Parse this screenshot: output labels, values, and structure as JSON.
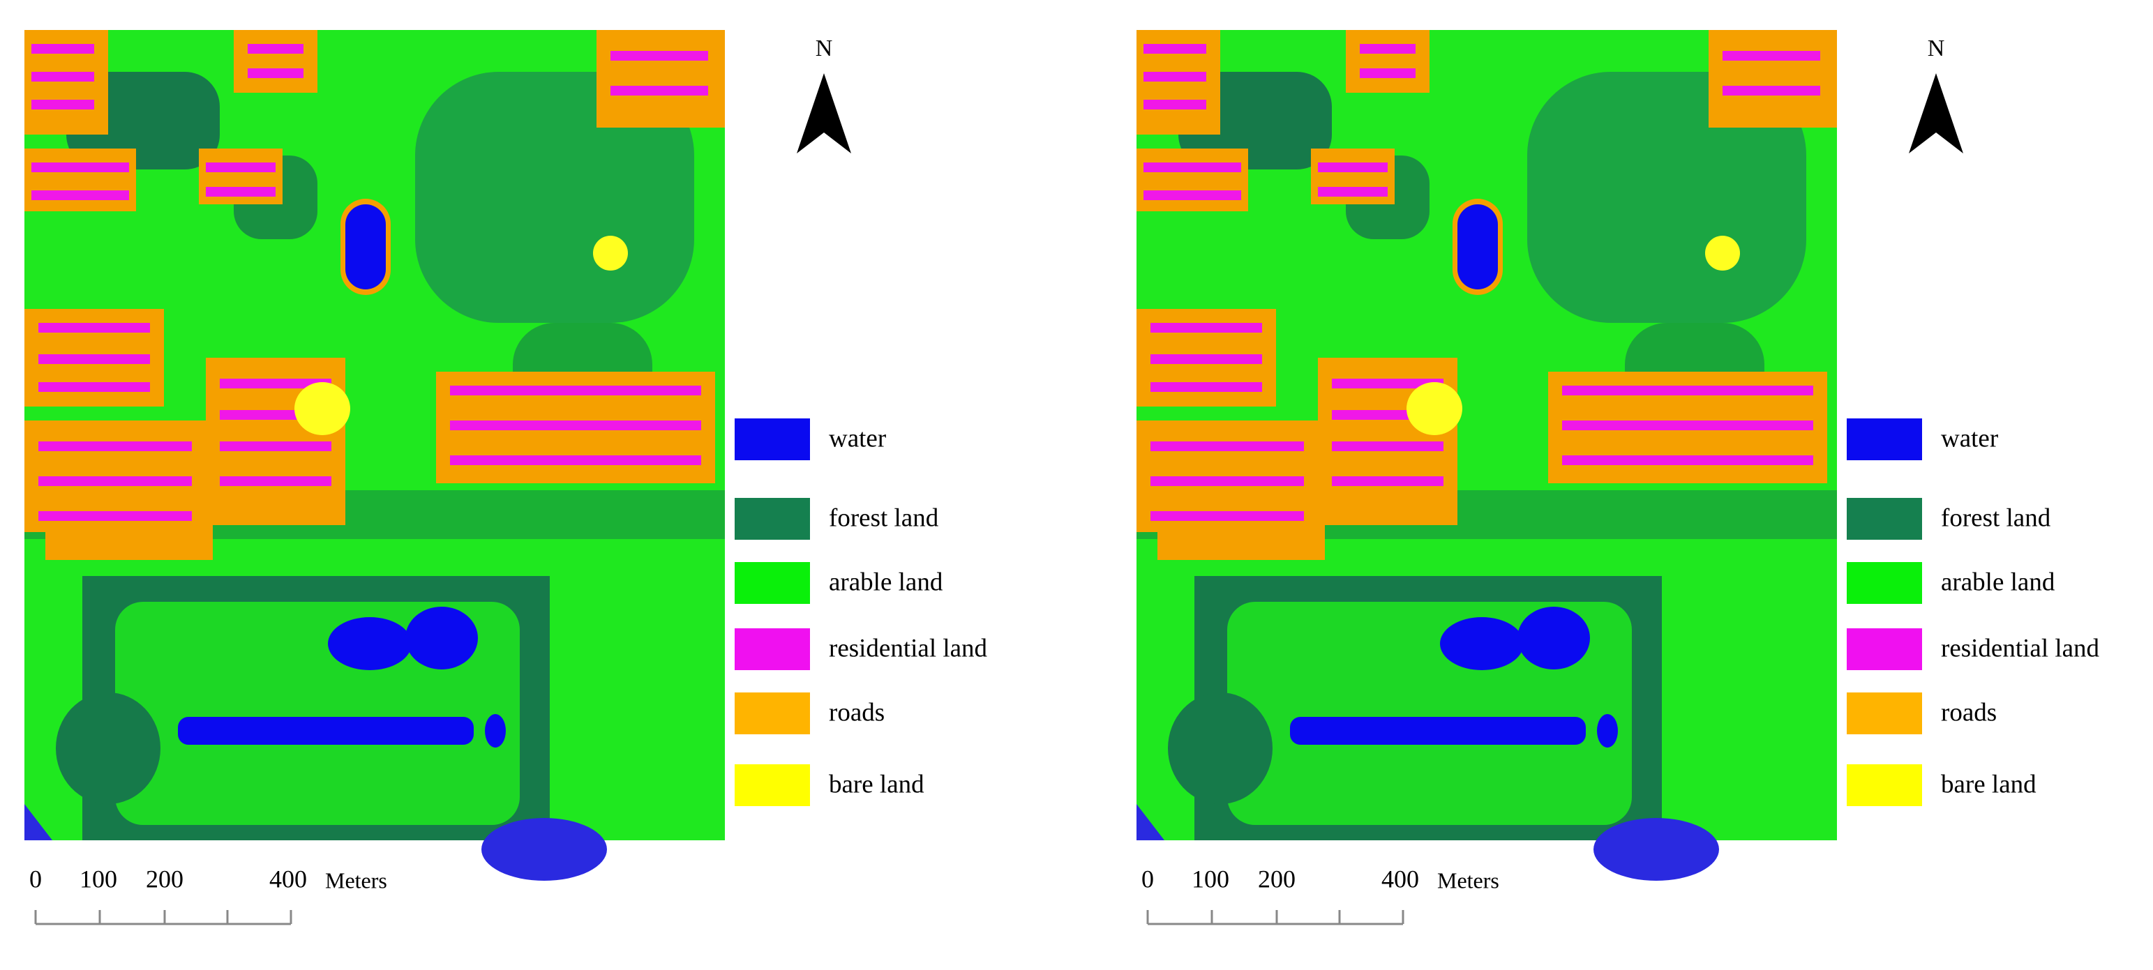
{
  "panels": [
    {
      "north": "N",
      "legend": [
        {
          "label": "water",
          "color": "#0a0af0"
        },
        {
          "label": "forest land",
          "color": "#15804f"
        },
        {
          "label": "arable land",
          "color": "#0af00a"
        },
        {
          "label": "residential land",
          "color": "#f010f0"
        },
        {
          "label": "roads",
          "color": "#ffb400"
        },
        {
          "label": "bare land",
          "color": "#ffff00"
        }
      ],
      "scale": {
        "labels": [
          "0",
          "100",
          "200",
          "400"
        ],
        "unit": "Meters"
      }
    },
    {
      "north": "N",
      "legend": [
        {
          "label": "water",
          "color": "#0a0af0"
        },
        {
          "label": "forest land",
          "color": "#15804f"
        },
        {
          "label": "arable land",
          "color": "#0af00a"
        },
        {
          "label": "residential land",
          "color": "#f010f0"
        },
        {
          "label": "roads",
          "color": "#ffb400"
        },
        {
          "label": "bare land",
          "color": "#ffff00"
        }
      ],
      "scale": {
        "labels": [
          "0",
          "100",
          "200",
          "400"
        ],
        "unit": "Meters"
      }
    }
  ]
}
